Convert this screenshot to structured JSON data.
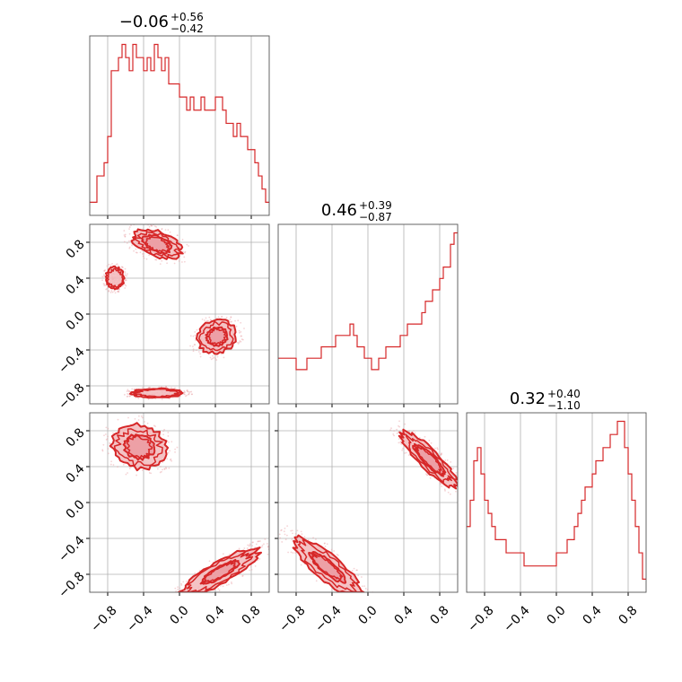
{
  "chart_data": {
    "type": "corner",
    "color": "#d62728",
    "fill_color": "#f2b8bb",
    "grid": true,
    "axis_range": [
      -1.0,
      1.0
    ],
    "tick_values": [
      -0.8,
      -0.4,
      0.0,
      0.4,
      0.8
    ],
    "tick_labels": [
      "−0.8",
      "−0.4",
      "0.0",
      "0.4",
      "0.8"
    ],
    "parameters": [
      {
        "title_main": "−0.06",
        "title_plus": "+0.56",
        "title_minus": "−0.42",
        "median": -0.06,
        "upper": 0.56,
        "lower": -0.42,
        "hist_bin_start": -1.0,
        "hist_bin_width": 0.04,
        "hist": [
          1,
          1,
          3,
          3,
          4,
          6,
          11,
          11,
          12,
          13,
          12,
          11,
          13,
          12,
          12,
          11,
          12,
          11,
          13,
          12,
          11,
          12,
          10,
          10,
          10,
          9,
          9,
          8,
          9,
          8,
          8,
          9,
          8,
          8,
          8,
          9,
          9,
          8,
          7,
          7,
          6,
          7,
          6,
          6,
          5,
          5,
          4,
          3,
          2,
          1
        ]
      },
      {
        "title_main": "0.46",
        "title_plus": "+0.39",
        "title_minus": "−0.87",
        "median": 0.46,
        "upper": 0.39,
        "lower": -0.87,
        "hist_bin_start": -1.0,
        "hist_bin_width": 0.04,
        "hist": [
          4,
          4,
          4,
          4,
          4,
          3,
          3,
          3,
          4,
          4,
          4,
          4,
          5,
          5,
          5,
          5,
          6,
          6,
          6,
          6,
          7,
          6,
          5,
          5,
          4,
          4,
          3,
          3,
          4,
          4,
          5,
          5,
          5,
          5,
          6,
          6,
          7,
          7,
          7,
          7,
          8,
          9,
          9,
          10,
          10,
          11,
          12,
          12,
          14,
          15
        ]
      },
      {
        "title_main": "0.32",
        "title_plus": "+0.40",
        "title_minus": "−1.10",
        "median": 0.32,
        "upper": 0.4,
        "lower": -1.1,
        "hist_bin_start": -1.0,
        "hist_bin_width": 0.04,
        "hist": [
          5,
          7,
          10,
          11,
          9,
          7,
          6,
          5,
          4,
          4,
          4,
          3,
          3,
          3,
          3,
          3,
          2,
          2,
          2,
          2,
          2,
          2,
          2,
          2,
          2,
          3,
          3,
          3,
          4,
          4,
          5,
          6,
          7,
          8,
          8,
          9,
          10,
          10,
          11,
          11,
          12,
          12,
          13,
          13,
          11,
          9,
          7,
          5,
          3,
          1
        ]
      }
    ],
    "pairs": [
      {
        "x_param": 0,
        "y_param": 1,
        "modes": [
          {
            "cx": -0.25,
            "cy": 0.78,
            "sx": 0.28,
            "sy": 0.14,
            "theta": -20,
            "levels": [
              1.0,
              0.6
            ]
          },
          {
            "cx": -0.72,
            "cy": 0.4,
            "sx": 0.1,
            "sy": 0.12,
            "theta": 0,
            "levels": [
              1.0
            ]
          },
          {
            "cx": 0.42,
            "cy": -0.25,
            "sx": 0.22,
            "sy": 0.18,
            "theta": 20,
            "levels": [
              1.0,
              0.55
            ]
          },
          {
            "cx": -0.25,
            "cy": -0.88,
            "sx": 0.28,
            "sy": 0.05,
            "theta": 0,
            "levels": [
              1.0
            ]
          }
        ]
      },
      {
        "x_param": 0,
        "y_param": 2,
        "modes": [
          {
            "cx": -0.45,
            "cy": 0.62,
            "sx": 0.3,
            "sy": 0.24,
            "theta": -15,
            "levels": [
              1.0,
              0.55
            ]
          },
          {
            "cx": 0.45,
            "cy": -0.78,
            "sx": 0.48,
            "sy": 0.12,
            "theta": 30,
            "levels": [
              1.0,
              0.5
            ]
          }
        ]
      },
      {
        "x_param": 1,
        "y_param": 2,
        "modes": [
          {
            "cx": 0.68,
            "cy": 0.48,
            "sx": 0.42,
            "sy": 0.11,
            "theta": -45,
            "levels": [
              1.0,
              0.55
            ]
          },
          {
            "cx": -0.45,
            "cy": -0.72,
            "sx": 0.48,
            "sy": 0.14,
            "theta": -40,
            "levels": [
              1.0,
              0.5
            ]
          }
        ]
      }
    ]
  }
}
